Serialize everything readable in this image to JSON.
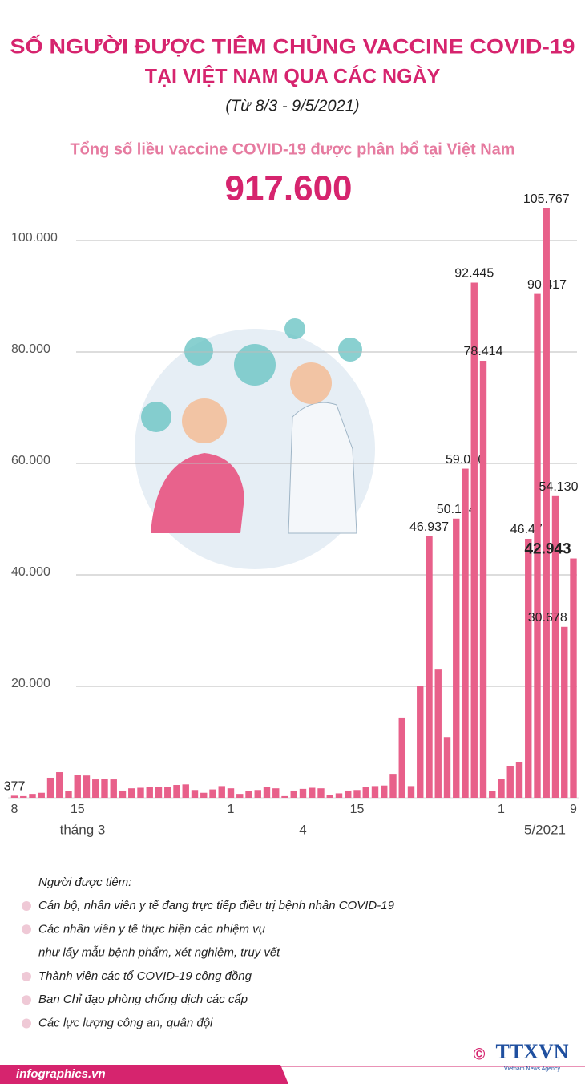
{
  "chart_data": {
    "type": "bar",
    "title_lines": [
      "SỐ NGƯỜI ĐƯỢC TIÊM CHỦNG VACCINE COVID-19",
      "TẠI VIỆT NAM QUA CÁC NGÀY"
    ],
    "subtitle": "(Từ 8/3 -  9/5/2021)",
    "total_heading": "Tổng số liều vaccine COVID-19 được phân bổ tại Việt Nam",
    "total": "917.600",
    "categories": [
      "8",
      null,
      null,
      null,
      null,
      null,
      null,
      "15",
      null,
      null,
      null,
      null,
      null,
      null,
      null,
      null,
      null,
      null,
      null,
      null,
      null,
      null,
      null,
      null,
      "1",
      null,
      null,
      null,
      null,
      null,
      null,
      null,
      null,
      null,
      null,
      null,
      null,
      null,
      "15",
      null,
      null,
      null,
      null,
      null,
      null,
      null,
      null,
      null,
      null,
      null,
      null,
      null,
      null,
      null,
      "1",
      null,
      null,
      null,
      null,
      null,
      null,
      null,
      "9"
    ],
    "month_labels": [
      "tháng 3",
      "4",
      "5/2021"
    ],
    "values": [
      377,
      300,
      700,
      900,
      3600,
      4600,
      1200,
      4100,
      4000,
      3300,
      3400,
      3300,
      1300,
      1700,
      1800,
      2000,
      1900,
      2000,
      2300,
      2400,
      1400,
      900,
      1500,
      2100,
      1700,
      700,
      1200,
      1400,
      1900,
      1700,
      300,
      1300,
      1600,
      1800,
      1700,
      500,
      800,
      1300,
      1400,
      1900,
      2100,
      2200,
      4300,
      14400,
      2100,
      20100,
      46937,
      23000,
      10900,
      50104,
      59056,
      92445,
      78414,
      1200,
      3400,
      5700,
      6400,
      46477,
      90417,
      105767,
      54130,
      30678,
      42943
    ],
    "value_labels": [
      "377",
      null,
      null,
      null,
      null,
      null,
      null,
      null,
      null,
      null,
      null,
      null,
      null,
      null,
      null,
      null,
      null,
      null,
      null,
      null,
      null,
      null,
      null,
      null,
      null,
      null,
      null,
      null,
      null,
      null,
      null,
      null,
      null,
      null,
      null,
      null,
      null,
      null,
      null,
      null,
      null,
      null,
      null,
      null,
      null,
      null,
      "46.937",
      null,
      null,
      "50.104",
      "59.056",
      "92.445",
      "78.414",
      null,
      null,
      null,
      null,
      "46.477",
      "90.417",
      "105.767",
      "54.130",
      "30.678",
      "42.943"
    ],
    "color": "#e8608a",
    "ylim": [
      0,
      110000
    ],
    "yticks": [
      {
        "value": 20000,
        "label": "20.000"
      },
      {
        "value": 40000,
        "label": "40.000"
      },
      {
        "value": 60000,
        "label": "60.000"
      },
      {
        "value": 80000,
        "label": "80.000"
      },
      {
        "value": 100000,
        "label": "100.000"
      }
    ],
    "grid": true
  },
  "notes": {
    "heading": "Người được tiêm:",
    "items": [
      [
        "Cán bộ, nhân viên y tế đang trực tiếp điều trị bệnh nhân COVID-19"
      ],
      [
        "Các nhân viên y tế thực hiện các nhiệm vụ",
        "như lấy mẫu bệnh phẩm, xét nghiệm, truy vết"
      ],
      [
        "Thành viên các tổ COVID-19 cộng đồng"
      ],
      [
        "Ban Chỉ đạo phòng chống dịch các cấp"
      ],
      [
        "Các lực lượng công an, quân đội"
      ]
    ]
  },
  "footer": {
    "source": "infographics.vn",
    "copyright": "©",
    "logo": "TTXVN",
    "logo_sub": "Vietnam News Agency"
  }
}
